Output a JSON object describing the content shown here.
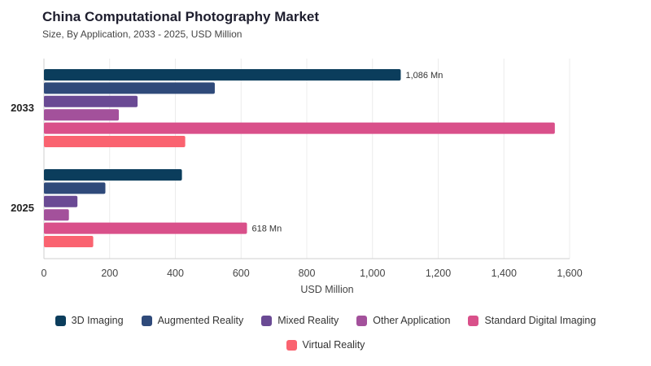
{
  "chart_data": {
    "type": "bar",
    "orientation": "horizontal",
    "title": "China Computational Photography Market",
    "subtitle": "Size, By Application, 2033 - 2025, USD Million",
    "xlabel": "USD Million",
    "ylabel": "",
    "xlim": [
      0,
      1600
    ],
    "xticks": [
      0,
      200,
      400,
      600,
      800,
      1000,
      1200,
      1400,
      1600
    ],
    "xtick_labels": [
      "0",
      "200",
      "400",
      "600",
      "800",
      "1,000",
      "1,200",
      "1,400",
      "1,600"
    ],
    "grid": true,
    "legend_position": "bottom",
    "categories": [
      "2033",
      "2025"
    ],
    "series": [
      {
        "name": "3D Imaging",
        "color": "#0b3d5c",
        "values": [
          1086,
          420
        ]
      },
      {
        "name": "Augmented Reality",
        "color": "#2f4a7a",
        "values": [
          520,
          187
        ]
      },
      {
        "name": "Mixed Reality",
        "color": "#6a4a94",
        "values": [
          285,
          102
        ]
      },
      {
        "name": "Other Application",
        "color": "#a3519b",
        "values": [
          228,
          76
        ]
      },
      {
        "name": "Standard Digital Imaging",
        "color": "#d9508a",
        "values": [
          1555,
          618
        ]
      },
      {
        "name": "Virtual Reality",
        "color": "#fa6370",
        "values": [
          430,
          150
        ]
      }
    ],
    "annotations": [
      {
        "category": "2033",
        "series": "3D Imaging",
        "text": "1,086 Mn"
      },
      {
        "category": "2025",
        "series": "Standard Digital Imaging",
        "text": "618 Mn"
      }
    ]
  }
}
